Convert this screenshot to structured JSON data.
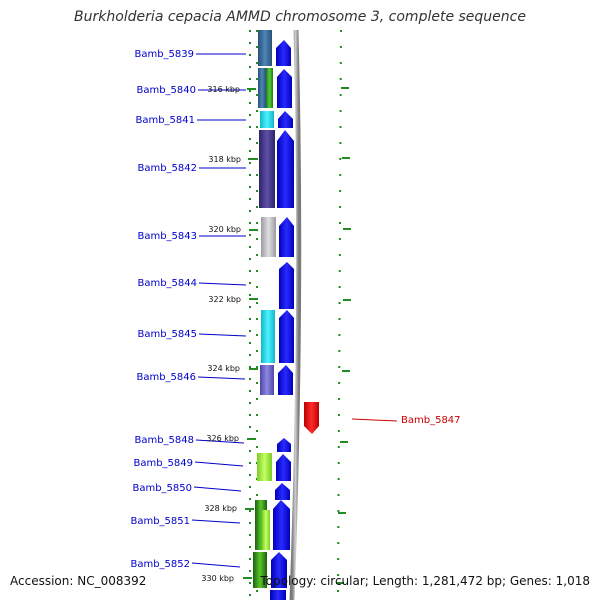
{
  "title": "Burkholderia cepacia AMMD chromosome 3, complete sequence",
  "footer": {
    "accession": "Accession: NC_008392",
    "summary": "Topology: circular; Length: 1,281,472 bp; Genes: 1,018"
  },
  "colors": {
    "label": "#0000cc",
    "highlight": "#cc0000",
    "forward_arrow": "#0000ee",
    "reverse_arrow": "#ee0000",
    "tick": "#228B22"
  },
  "genes": [
    {
      "name": "Bamb_5839"
    },
    {
      "name": "Bamb_5840"
    },
    {
      "name": "Bamb_5841"
    },
    {
      "name": "Bamb_5842"
    },
    {
      "name": "Bamb_5843"
    },
    {
      "name": "Bamb_5844"
    },
    {
      "name": "Bamb_5845"
    },
    {
      "name": "Bamb_5846"
    },
    {
      "name": "Bamb_5847"
    },
    {
      "name": "Bamb_5848"
    },
    {
      "name": "Bamb_5849"
    },
    {
      "name": "Bamb_5850"
    },
    {
      "name": "Bamb_5851"
    },
    {
      "name": "Bamb_5852"
    }
  ],
  "ticks": [
    "316 kbp",
    "318 kbp",
    "320 kbp",
    "322 kbp",
    "324 kbp",
    "326 kbp",
    "328 kbp",
    "330 kbp"
  ]
}
